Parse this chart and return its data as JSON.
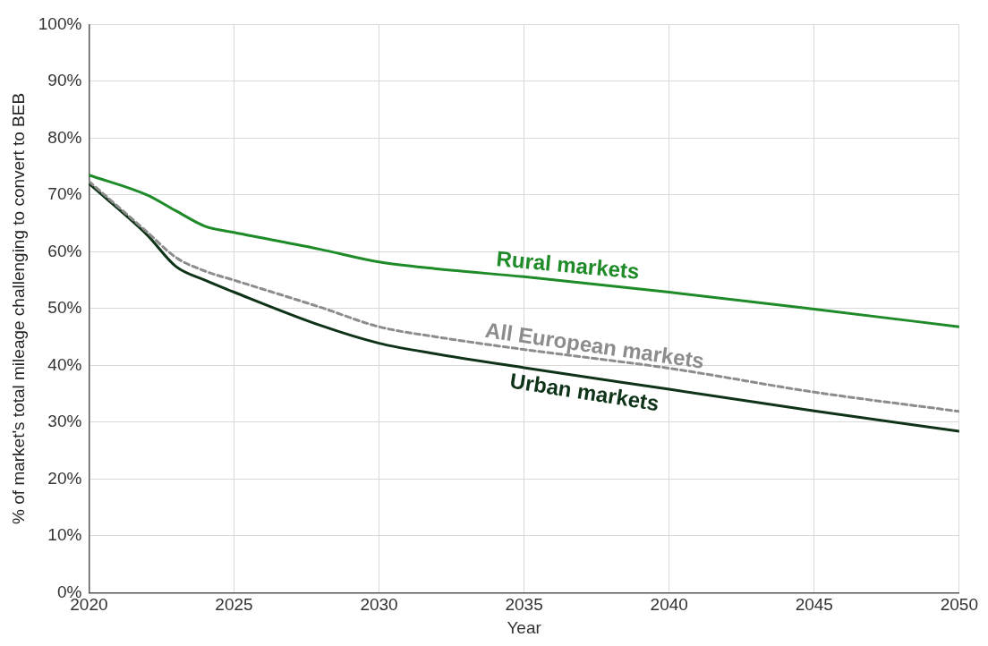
{
  "chart_data": {
    "type": "line",
    "xlabel": "Year",
    "ylabel": "% of market's total mileage challenging to convert to BEB",
    "xlim": [
      2020,
      2050
    ],
    "xticks": [
      2020,
      2025,
      2030,
      2035,
      2040,
      2045,
      2050
    ],
    "ylim": [
      0,
      100
    ],
    "yticks": [
      {
        "value": 0,
        "label": "0%"
      },
      {
        "value": 10,
        "label": "10%"
      },
      {
        "value": 20,
        "label": "20%"
      },
      {
        "value": 30,
        "label": "30%"
      },
      {
        "value": 40,
        "label": "40%"
      },
      {
        "value": 50,
        "label": "50%"
      },
      {
        "value": 60,
        "label": "60%"
      },
      {
        "value": 70,
        "label": "70%"
      },
      {
        "value": 80,
        "label": "80%"
      },
      {
        "value": 90,
        "label": "90%"
      },
      {
        "value": 100,
        "label": "100%"
      }
    ],
    "grid": true,
    "legend": false,
    "marker": "none",
    "x": [
      2020,
      2022,
      2023,
      2024,
      2025,
      2028,
      2030,
      2032,
      2035,
      2040,
      2045,
      2050
    ],
    "series": [
      {
        "name": "Rural markets",
        "color": "#1e8a28",
        "line_style": "solid",
        "values": [
          73.5,
          70,
          67.2,
          64.5,
          63.4,
          60.4,
          58.2,
          57,
          55.6,
          52.9,
          49.9,
          46.8
        ]
      },
      {
        "name": "All European markets",
        "color": "#8c8c8c",
        "line_style": "dashed",
        "values": [
          72.4,
          63.5,
          59,
          56.6,
          55,
          50.2,
          46.8,
          45,
          42.8,
          39.5,
          35.3,
          31.9
        ]
      },
      {
        "name": "Urban markets",
        "color": "#0f3318",
        "line_style": "solid",
        "values": [
          72,
          63,
          57.4,
          55,
          52.9,
          47,
          43.9,
          42,
          39.6,
          35.8,
          32,
          28.4
        ]
      }
    ]
  }
}
